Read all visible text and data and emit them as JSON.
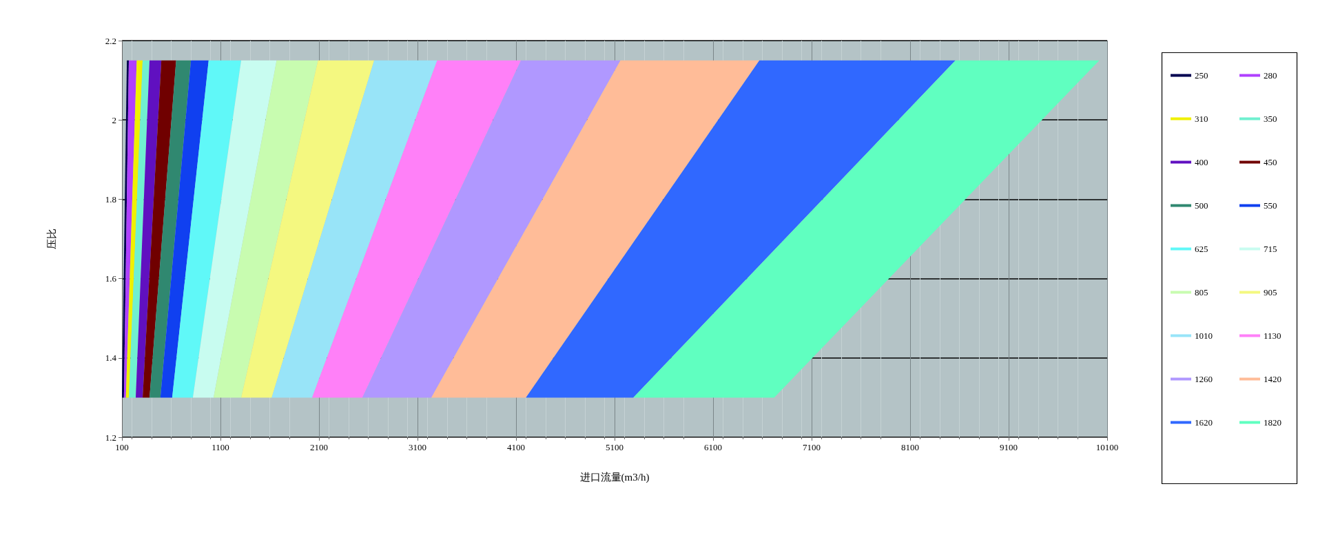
{
  "chart_data": {
    "type": "area",
    "xlabel": "进口流量(m3/h)",
    "ylabel": "压比",
    "xlim": [
      100,
      10100
    ],
    "xticks": [
      100,
      1100,
      2100,
      3100,
      4100,
      5100,
      6100,
      7100,
      8100,
      9100,
      10100
    ],
    "ylim": [
      1.2,
      2.2
    ],
    "yticks": [
      1.2,
      1.4,
      1.6,
      1.8,
      2,
      2.2
    ],
    "grid": true,
    "legend": "right",
    "series": [
      {
        "name": "250",
        "color": "#000050",
        "x": [
          100,
          150,
          170,
          120
        ],
        "values": [
          1.3,
          2.15,
          2.15,
          1.3
        ]
      },
      {
        "name": "280",
        "color": "#b040ff",
        "x": [
          120,
          170,
          250,
          140
        ],
        "values": [
          1.3,
          2.15,
          2.15,
          1.3
        ]
      },
      {
        "name": "310",
        "color": "#f0f000",
        "x": [
          140,
          250,
          310,
          170
        ],
        "values": [
          1.3,
          2.15,
          2.15,
          1.3
        ]
      },
      {
        "name": "350",
        "color": "#70f0d0",
        "x": [
          170,
          310,
          380,
          240
        ],
        "values": [
          1.3,
          2.15,
          2.15,
          1.3
        ]
      },
      {
        "name": "400",
        "color": "#6010c0",
        "x": [
          240,
          380,
          500,
          310
        ],
        "values": [
          1.3,
          2.15,
          2.15,
          1.3
        ]
      },
      {
        "name": "450",
        "color": "#700000",
        "x": [
          310,
          500,
          650,
          380
        ],
        "values": [
          1.3,
          2.15,
          2.15,
          1.3
        ]
      },
      {
        "name": "500",
        "color": "#308870",
        "x": [
          380,
          650,
          800,
          490
        ],
        "values": [
          1.3,
          2.15,
          2.15,
          1.3
        ]
      },
      {
        "name": "550",
        "color": "#1040f0",
        "x": [
          490,
          800,
          980,
          610
        ],
        "values": [
          1.3,
          2.15,
          2.15,
          1.3
        ]
      },
      {
        "name": "625",
        "color": "#60f8f8",
        "x": [
          610,
          980,
          1310,
          820
        ],
        "values": [
          1.3,
          2.15,
          2.15,
          1.3
        ]
      },
      {
        "name": "715",
        "color": "#c8fcf0",
        "x": [
          820,
          1310,
          1670,
          1030
        ],
        "values": [
          1.3,
          2.15,
          2.15,
          1.3
        ]
      },
      {
        "name": "805",
        "color": "#c8fcb0",
        "x": [
          1030,
          1670,
          2090,
          1310
        ],
        "values": [
          1.3,
          2.15,
          2.15,
          1.3
        ]
      },
      {
        "name": "905",
        "color": "#f4f880",
        "x": [
          1310,
          2090,
          2660,
          1620
        ],
        "values": [
          1.3,
          2.15,
          2.15,
          1.3
        ]
      },
      {
        "name": "1010",
        "color": "#98e4f8",
        "x": [
          1620,
          2660,
          3300,
          2030
        ],
        "values": [
          1.3,
          2.15,
          2.15,
          1.3
        ]
      },
      {
        "name": "1130",
        "color": "#ff80f8",
        "x": [
          2030,
          3300,
          4150,
          2540
        ],
        "values": [
          1.3,
          2.15,
          2.15,
          1.3
        ]
      },
      {
        "name": "1260",
        "color": "#b098ff",
        "x": [
          2540,
          4150,
          5160,
          3240
        ],
        "values": [
          1.3,
          2.15,
          2.15,
          1.3
        ]
      },
      {
        "name": "1420",
        "color": "#ffbc98",
        "x": [
          3240,
          5160,
          6570,
          4200
        ],
        "values": [
          1.3,
          2.15,
          2.15,
          1.3
        ]
      },
      {
        "name": "1620",
        "color": "#3068ff",
        "x": [
          4200,
          6570,
          8560,
          5290
        ],
        "values": [
          1.3,
          2.15,
          2.15,
          1.3
        ]
      },
      {
        "name": "1820",
        "color": "#60ffc0",
        "x": [
          5290,
          8560,
          10020,
          6720
        ],
        "values": [
          1.3,
          2.15,
          2.15,
          1.3
        ]
      }
    ]
  }
}
